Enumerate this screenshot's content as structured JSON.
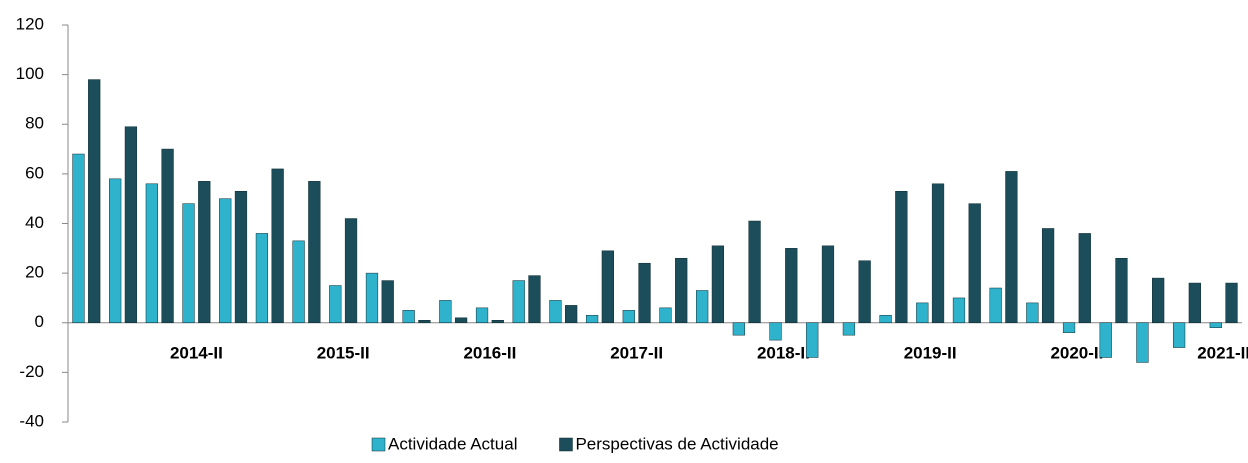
{
  "chart_data": {
    "type": "bar",
    "categories": [
      null,
      null,
      null,
      "2014-II",
      null,
      null,
      null,
      "2015-II",
      null,
      null,
      null,
      "2016-II",
      null,
      null,
      null,
      "2017-II",
      null,
      null,
      null,
      "2018-II",
      null,
      null,
      null,
      "2019-II",
      null,
      null,
      null,
      "2020-II",
      null,
      null,
      null,
      "2021-II"
    ],
    "series": [
      {
        "name": "Actividade Actual",
        "color": "#2fb3cc",
        "values": [
          68,
          58,
          56,
          48,
          50,
          36,
          33,
          15,
          20,
          5,
          9,
          6,
          17,
          9,
          3,
          5,
          6,
          13,
          -5,
          -7,
          -14,
          -5,
          3,
          8,
          10,
          14,
          8,
          -4,
          -14,
          -16,
          -10,
          -2
        ]
      },
      {
        "name": "Perspectivas de Actividade",
        "color": "#1b4d5a",
        "values": [
          98,
          79,
          70,
          57,
          53,
          62,
          57,
          42,
          17,
          1,
          2,
          1,
          19,
          7,
          29,
          24,
          26,
          31,
          41,
          30,
          31,
          25,
          53,
          56,
          48,
          61,
          38,
          36,
          26,
          18,
          16,
          16
        ]
      }
    ],
    "ylim": [
      -40,
      120
    ],
    "yticks": [
      -40,
      -20,
      0,
      20,
      40,
      60,
      80,
      100,
      120
    ],
    "grid": false,
    "legend": "bottom"
  }
}
